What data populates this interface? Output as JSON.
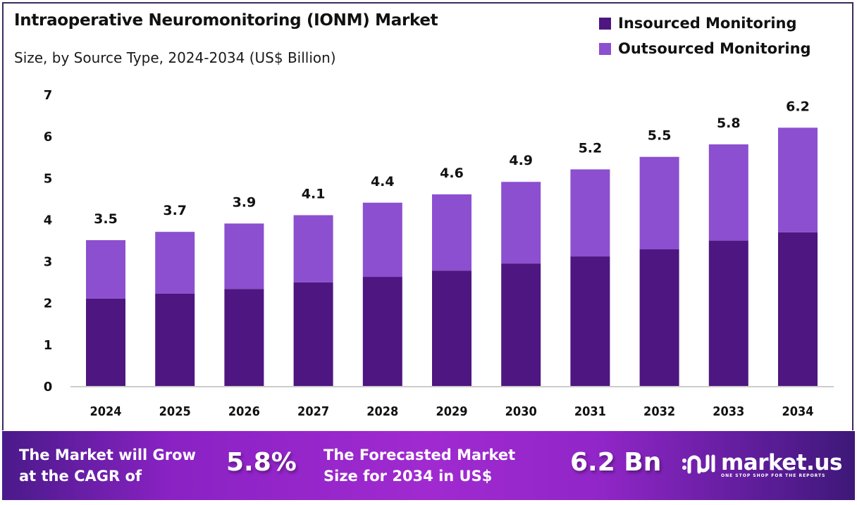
{
  "header": {
    "title": "Intraoperative Neuromonitoring (IONM) Market",
    "subtitle": "Size, by Source Type, 2024-2034 (US$ Billion)"
  },
  "colors": {
    "insourced": "#4e1680",
    "outsourced": "#8c4fcf",
    "axis_line": "#cccccc",
    "frame": "#3b2a5a"
  },
  "chart_data": {
    "type": "bar",
    "stacked": true,
    "title": "Intraoperative Neuromonitoring (IONM) Market",
    "subtitle": "Size, by Source Type, 2024-2034 (US$ Billion)",
    "xlabel": "",
    "ylabel": "",
    "ylim": [
      0,
      7
    ],
    "yticks": [
      "0",
      "1",
      "2",
      "3",
      "4",
      "5",
      "6",
      "7"
    ],
    "grid": false,
    "legend_position": "top-right",
    "categories": [
      "2024",
      "2025",
      "2026",
      "2027",
      "2028",
      "2029",
      "2030",
      "2031",
      "2032",
      "2033",
      "2034"
    ],
    "series": [
      {
        "name": "Insourced Monitoring",
        "values": [
          2.1,
          2.22,
          2.33,
          2.49,
          2.62,
          2.77,
          2.94,
          3.11,
          3.28,
          3.49,
          3.69
        ]
      },
      {
        "name": "Outsourced Monitoring",
        "values": [
          1.4,
          1.48,
          1.57,
          1.61,
          1.78,
          1.83,
          1.96,
          2.09,
          2.22,
          2.31,
          2.51
        ]
      }
    ],
    "totals": [
      3.5,
      3.7,
      3.9,
      4.1,
      4.4,
      4.6,
      4.9,
      5.2,
      5.5,
      5.8,
      6.2
    ],
    "data_labels": [
      "3.5",
      "3.7",
      "3.9",
      "4.1",
      "4.4",
      "4.6",
      "4.9",
      "5.2",
      "5.5",
      "5.8",
      "6.2"
    ]
  },
  "legend": [
    {
      "label": "Insourced Monitoring"
    },
    {
      "label": "Outsourced Monitoring"
    }
  ],
  "banner": {
    "cagr_text_line1": "The Market will Grow",
    "cagr_text_line2": "at the CAGR of",
    "cagr_value": "5.8%",
    "forecast_text_line1": "The Forecasted Market",
    "forecast_text_line2": "Size for 2034 in US$",
    "forecast_value": "6.2 Bn",
    "logo_name": "market.us",
    "logo_tagline": "ONE STOP SHOP FOR THE REPORTS"
  }
}
